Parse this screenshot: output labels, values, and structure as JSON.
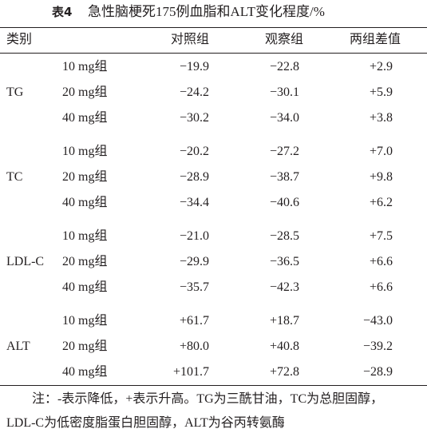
{
  "title": {
    "label": "表4",
    "text": "急性脑梗死175例血脂和ALT变化程度/%"
  },
  "table": {
    "header": [
      "类别",
      "对照组",
      "观察组",
      "两组差值"
    ],
    "groups": [
      {
        "name": "TG",
        "rows": [
          {
            "dose": "10 mg组",
            "values": [
              "−19.9",
              "−22.8",
              "+2.9"
            ]
          },
          {
            "dose": "20 mg组",
            "values": [
              "−24.2",
              "−30.1",
              "+5.9"
            ]
          },
          {
            "dose": "40 mg组",
            "values": [
              "−30.2",
              "−34.0",
              "+3.8"
            ]
          }
        ]
      },
      {
        "name": "TC",
        "rows": [
          {
            "dose": "10 mg组",
            "values": [
              "−20.2",
              "−27.2",
              "+7.0"
            ]
          },
          {
            "dose": "20 mg组",
            "values": [
              "−28.9",
              "−38.7",
              "+9.8"
            ]
          },
          {
            "dose": "40 mg组",
            "values": [
              "−34.4",
              "−40.6",
              "+6.2"
            ]
          }
        ]
      },
      {
        "name": "LDL-C",
        "rows": [
          {
            "dose": "10 mg组",
            "values": [
              "−21.0",
              "−28.5",
              "+7.5"
            ]
          },
          {
            "dose": "20 mg组",
            "values": [
              "−29.9",
              "−36.5",
              "+6.6"
            ]
          },
          {
            "dose": "40 mg组",
            "values": [
              "−35.7",
              "−42.3",
              "+6.6"
            ]
          }
        ]
      },
      {
        "name": "ALT",
        "rows": [
          {
            "dose": "10 mg组",
            "values": [
              "+61.7",
              "+18.7",
              "−43.0"
            ]
          },
          {
            "dose": "20 mg组",
            "values": [
              "+80.0",
              "+40.8",
              "−39.2"
            ]
          },
          {
            "dose": "40 mg组",
            "values": [
              "+101.7",
              "+72.8",
              "−28.9"
            ]
          }
        ]
      }
    ]
  },
  "note": [
    "注：-表示降低，+表示升高。TG为三酰甘油，TC为总胆固醇，",
    "LDL-C为低密度脂蛋白胆固醇，ALT为谷丙转氨酶"
  ]
}
